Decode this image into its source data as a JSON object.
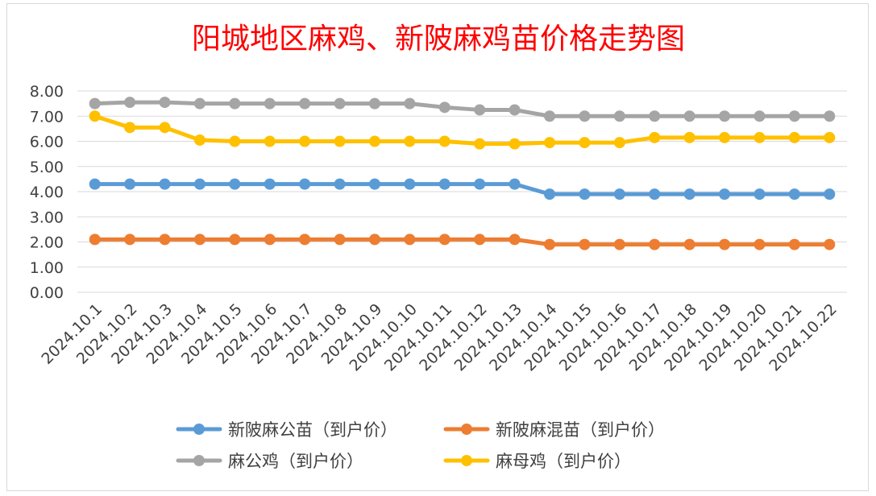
{
  "chart_data": {
    "type": "line",
    "title": "阳城地区麻鸡、新陂麻鸡苗价格走势图",
    "xlabel": "",
    "ylabel": "",
    "ylim": [
      0,
      8
    ],
    "ytick_step": 1,
    "ytick_labels": [
      "0.00",
      "1.00",
      "2.00",
      "3.00",
      "4.00",
      "5.00",
      "6.00",
      "7.00",
      "8.00"
    ],
    "grid": true,
    "legend_position": "bottom",
    "categories": [
      "2024.10.1",
      "2024.10.2",
      "2024.10.3",
      "2024.10.4",
      "2024.10.5",
      "2024.10.6",
      "2024.10.7",
      "2024.10.8",
      "2024.10.9",
      "2024.10.10",
      "2024.10.11",
      "2024.10.12",
      "2024.10.13",
      "2024.10.14",
      "2024.10.15",
      "2024.10.16",
      "2024.10.17",
      "2024.10.18",
      "2024.10.19",
      "2024.10.20",
      "2024.10.21",
      "2024.10.22"
    ],
    "series": [
      {
        "name": "新陂麻公苗（到户价）",
        "color": "#5b9bd5",
        "values": [
          4.3,
          4.3,
          4.3,
          4.3,
          4.3,
          4.3,
          4.3,
          4.3,
          4.3,
          4.3,
          4.3,
          4.3,
          4.3,
          3.9,
          3.9,
          3.9,
          3.9,
          3.9,
          3.9,
          3.9,
          3.9,
          3.9
        ]
      },
      {
        "name": "新陂麻混苗（到户价）",
        "color": "#ed7d31",
        "values": [
          2.1,
          2.1,
          2.1,
          2.1,
          2.1,
          2.1,
          2.1,
          2.1,
          2.1,
          2.1,
          2.1,
          2.1,
          2.1,
          1.9,
          1.9,
          1.9,
          1.9,
          1.9,
          1.9,
          1.9,
          1.9,
          1.9
        ]
      },
      {
        "name": "麻公鸡（到户价）",
        "color": "#a5a5a5",
        "values": [
          7.5,
          7.55,
          7.55,
          7.5,
          7.5,
          7.5,
          7.5,
          7.5,
          7.5,
          7.5,
          7.35,
          7.25,
          7.25,
          7.0,
          7.0,
          7.0,
          7.0,
          7.0,
          7.0,
          7.0,
          7.0,
          7.0
        ]
      },
      {
        "name": "麻母鸡（到户价）",
        "color": "#ffc000",
        "values": [
          7.0,
          6.55,
          6.55,
          6.05,
          6.0,
          6.0,
          6.0,
          6.0,
          6.0,
          6.0,
          6.0,
          5.9,
          5.9,
          5.95,
          5.95,
          5.95,
          6.15,
          6.15,
          6.15,
          6.15,
          6.15,
          6.15
        ]
      }
    ]
  }
}
